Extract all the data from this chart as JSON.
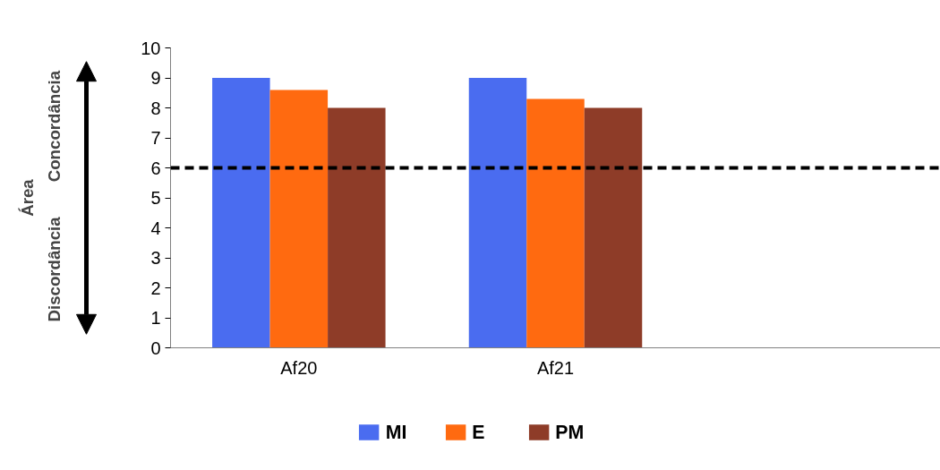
{
  "chart_data": {
    "type": "bar",
    "categories": [
      "Af20",
      "Af21",
      null
    ],
    "series": [
      {
        "name": "MI",
        "color": "#4a6cf0",
        "values": [
          9,
          9,
          null
        ]
      },
      {
        "name": "E",
        "color": "#ff6a10",
        "values": [
          8.6,
          8.3,
          null
        ]
      },
      {
        "name": "PM",
        "color": "#8e3c28",
        "values": [
          8,
          8,
          null
        ]
      }
    ],
    "ylim": [
      0,
      10
    ],
    "yticks": [
      0,
      1,
      2,
      3,
      4,
      5,
      6,
      7,
      8,
      9,
      10
    ],
    "ref_lines": [
      {
        "axis": "y",
        "value": 6,
        "color": "#000000",
        "line_style": "dashed"
      }
    ],
    "annotations": [
      "Concordância",
      "Área",
      "Discordância"
    ],
    "grid": false,
    "legend": "bottom"
  }
}
